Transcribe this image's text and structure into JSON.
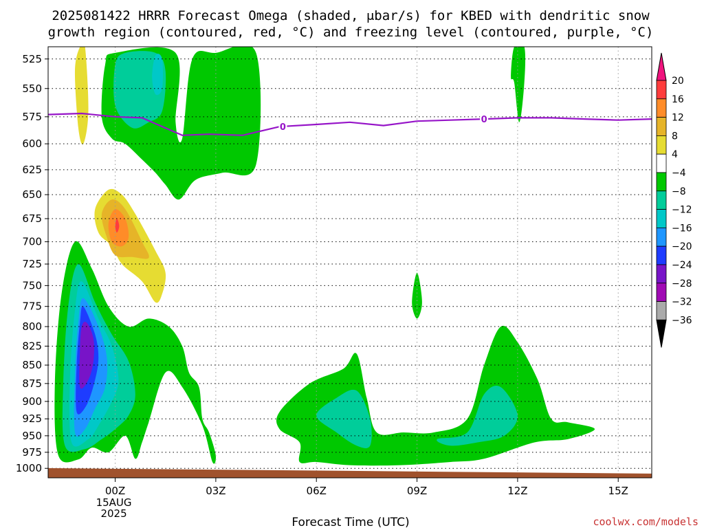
{
  "page": {
    "title_line1": "2025081422 HRRR Forecast Omega (shaded, μbar/s) for KBED with dendritic snow",
    "title_line2": "growth region (contoured, red, °C) and freezing level (contoured, purple, °C)",
    "credit": "coolwx.com/models"
  },
  "chart_data": {
    "type": "heatmap",
    "title": "2025081422 HRRR Forecast Omega (shaded, μbar/s) for KBED with dendritic snow growth region (contoured, red, °C) and freezing level (contoured, purple, °C)",
    "xlabel": "Forecast Time (UTC)",
    "ylabel": "",
    "x_ticks": [
      "00Z",
      "03Z",
      "06Z",
      "09Z",
      "12Z",
      "15Z"
    ],
    "x_tick_hours": [
      2,
      5,
      8,
      11,
      14,
      17
    ],
    "x_date_label": [
      "15AUG",
      "2025"
    ],
    "xlim": [
      0,
      18
    ],
    "y_ticks": [
      525,
      550,
      575,
      600,
      625,
      650,
      675,
      700,
      725,
      750,
      775,
      800,
      825,
      850,
      875,
      900,
      925,
      950,
      975,
      1000
    ],
    "ylim": [
      515,
      1015
    ],
    "ylog": true,
    "y_inverted": true,
    "grid": true,
    "colorbar": {
      "labels": [
        20,
        16,
        12,
        8,
        4,
        -4,
        -8,
        -12,
        -16,
        -20,
        -24,
        -28,
        -32,
        -36
      ],
      "colors": [
        "#f0147e",
        "#ff3c3c",
        "#ff8c28",
        "#e6b428",
        "#e6dc32",
        "#ffffff",
        "#00c800",
        "#00cd9a",
        "#00c8c8",
        "#1e96ff",
        "#1e3cff",
        "#7814c8",
        "#a00ab4",
        "#aaaaaa",
        "#000000"
      ]
    },
    "freezing_level": {
      "label": "0",
      "color": "#9614c8",
      "x": [
        0,
        1,
        2,
        2.8,
        4,
        4.8,
        5.8,
        6.9,
        8,
        9,
        10,
        11,
        12,
        13,
        14,
        15,
        16,
        17,
        18
      ],
      "y": [
        573,
        572,
        575,
        576,
        592,
        591,
        592,
        584,
        582,
        580,
        583,
        579,
        578,
        577,
        576,
        576,
        577,
        578,
        577
      ]
    },
    "omega_regions": [
      {
        "name": "omega-ascent-low-green",
        "value": -8,
        "color": "#00c800",
        "points": [
          [
            0.3,
            979
          ],
          [
            0.2,
            875
          ],
          [
            0.4,
            760
          ],
          [
            0.8,
            700
          ],
          [
            1.3,
            730
          ],
          [
            1.8,
            775
          ],
          [
            2.4,
            800
          ],
          [
            3.0,
            790
          ],
          [
            3.6,
            800
          ],
          [
            4.0,
            825
          ],
          [
            4.2,
            860
          ],
          [
            4.5,
            880
          ],
          [
            4.6,
            925
          ],
          [
            4.8,
            945
          ],
          [
            5.0,
            980
          ],
          [
            4.9,
            990
          ],
          [
            4.6,
            935
          ],
          [
            4.0,
            880
          ],
          [
            3.5,
            860
          ],
          [
            3.0,
            930
          ],
          [
            2.8,
            960
          ],
          [
            2.6,
            985
          ],
          [
            2.3,
            950
          ],
          [
            1.8,
            975
          ],
          [
            1.3,
            968
          ],
          [
            0.9,
            986
          ]
        ]
      },
      {
        "name": "omega-ascent-low-teal",
        "value": -12,
        "color": "#00cd9a",
        "points": [
          [
            0.5,
            965
          ],
          [
            0.45,
            875
          ],
          [
            0.6,
            775
          ],
          [
            0.9,
            725
          ],
          [
            1.4,
            770
          ],
          [
            1.9,
            810
          ],
          [
            2.4,
            845
          ],
          [
            2.6,
            890
          ],
          [
            2.4,
            920
          ],
          [
            2.0,
            940
          ],
          [
            1.6,
            955
          ],
          [
            1.1,
            970
          ]
        ]
      },
      {
        "name": "omega-ascent-low-cyan",
        "value": -16,
        "color": "#00c8c8",
        "points": [
          [
            0.7,
            960
          ],
          [
            0.65,
            870
          ],
          [
            0.8,
            780
          ],
          [
            1.0,
            745
          ],
          [
            1.5,
            790
          ],
          [
            1.9,
            825
          ],
          [
            2.1,
            870
          ],
          [
            1.9,
            900
          ],
          [
            1.5,
            935
          ],
          [
            1.2,
            955
          ]
        ]
      },
      {
        "name": "omega-ascent-low-blue",
        "value": -20,
        "color": "#1e96ff",
        "points": [
          [
            0.8,
            945
          ],
          [
            0.8,
            860
          ],
          [
            0.9,
            795
          ],
          [
            1.05,
            765
          ],
          [
            1.5,
            800
          ],
          [
            1.75,
            840
          ],
          [
            1.7,
            880
          ],
          [
            1.4,
            910
          ],
          [
            1.1,
            940
          ]
        ]
      },
      {
        "name": "omega-ascent-low-dark-blue",
        "value": -24,
        "color": "#1e3cff",
        "points": [
          [
            0.85,
            915
          ],
          [
            0.85,
            850
          ],
          [
            0.95,
            795
          ],
          [
            1.05,
            775
          ],
          [
            1.4,
            810
          ],
          [
            1.5,
            840
          ],
          [
            1.4,
            870
          ],
          [
            1.15,
            905
          ]
        ]
      },
      {
        "name": "omega-ascent-low-purple",
        "value": -28,
        "color": "#7814c8",
        "points": [
          [
            0.95,
            880
          ],
          [
            0.95,
            830
          ],
          [
            1.0,
            800
          ],
          [
            1.15,
            795
          ],
          [
            1.35,
            815
          ],
          [
            1.35,
            845
          ],
          [
            1.2,
            870
          ]
        ]
      },
      {
        "name": "omega-ascent-mid-green",
        "value": -8,
        "color": "#00c800",
        "points": [
          [
            1.6,
            575
          ],
          [
            1.7,
            530
          ],
          [
            2.0,
            520
          ],
          [
            3.8,
            520
          ],
          [
            3.8,
            580
          ],
          [
            4.0,
            595
          ],
          [
            4.3,
            525
          ],
          [
            5.0,
            520
          ],
          [
            6.2,
            520
          ],
          [
            6.2,
            620
          ],
          [
            5.2,
            628
          ],
          [
            4.4,
            635
          ],
          [
            3.9,
            655
          ],
          [
            3.5,
            640
          ],
          [
            3.2,
            628
          ],
          [
            2.8,
            615
          ],
          [
            2.3,
            600
          ],
          [
            1.9,
            595
          ]
        ]
      },
      {
        "name": "omega-ascent-mid-teal",
        "value": -12,
        "color": "#00cd9a",
        "points": [
          [
            2.0,
            565
          ],
          [
            2.0,
            530
          ],
          [
            2.3,
            520
          ],
          [
            3.2,
            520
          ],
          [
            3.5,
            535
          ],
          [
            3.4,
            570
          ],
          [
            3.0,
            580
          ],
          [
            2.5,
            585
          ]
        ]
      },
      {
        "name": "omega-ascent-mid-cyan",
        "value": -16,
        "color": "#00c8c8",
        "points": [
          [
            3.1,
            540
          ],
          [
            3.2,
            522
          ],
          [
            3.4,
            525
          ],
          [
            3.4,
            550
          ],
          [
            3.2,
            555
          ]
        ]
      },
      {
        "name": "omega-ascent-12z-green",
        "value": -8,
        "color": "#00c800",
        "points": [
          [
            13.8,
            540
          ],
          [
            13.9,
            515
          ],
          [
            14.2,
            515
          ],
          [
            14.2,
            545
          ],
          [
            14.05,
            580
          ],
          [
            13.9,
            545
          ]
        ]
      },
      {
        "name": "omega-ascent-09z-green",
        "value": -8,
        "color": "#00c800",
        "points": [
          [
            10.85,
            770
          ],
          [
            11.0,
            735
          ],
          [
            11.15,
            770
          ],
          [
            11.0,
            790
          ]
        ]
      },
      {
        "name": "omega-ascent-06z-green",
        "value": -8,
        "color": "#00c800",
        "points": [
          [
            6.9,
            915
          ],
          [
            7.8,
            875
          ],
          [
            8.8,
            855
          ],
          [
            9.2,
            835
          ],
          [
            9.5,
            895
          ],
          [
            9.8,
            945
          ],
          [
            10.6,
            945
          ],
          [
            11.5,
            945
          ],
          [
            12.5,
            925
          ],
          [
            13.0,
            850
          ],
          [
            13.5,
            800
          ],
          [
            14.0,
            820
          ],
          [
            14.6,
            870
          ],
          [
            15.0,
            925
          ],
          [
            15.5,
            930
          ],
          [
            16.3,
            940
          ],
          [
            15.5,
            955
          ],
          [
            14.5,
            960
          ],
          [
            13.0,
            985
          ],
          [
            12.0,
            990
          ],
          [
            10.5,
            995
          ],
          [
            9.0,
            995
          ],
          [
            8.0,
            990
          ],
          [
            7.5,
            990
          ],
          [
            7.5,
            960
          ],
          [
            6.9,
            940
          ]
        ]
      },
      {
        "name": "omega-ascent-07z-teal",
        "value": -12,
        "color": "#00cd9a",
        "points": [
          [
            8.0,
            920
          ],
          [
            8.6,
            895
          ],
          [
            9.2,
            885
          ],
          [
            9.6,
            925
          ],
          [
            9.6,
            965
          ],
          [
            9.2,
            965
          ],
          [
            8.6,
            945
          ]
        ]
      },
      {
        "name": "omega-ascent-11z-teal",
        "value": -12,
        "color": "#00cd9a",
        "points": [
          [
            11.6,
            955
          ],
          [
            12.5,
            945
          ],
          [
            13.0,
            890
          ],
          [
            13.5,
            880
          ],
          [
            14.0,
            920
          ],
          [
            13.6,
            950
          ],
          [
            12.8,
            960
          ],
          [
            12.0,
            965
          ]
        ]
      },
      {
        "name": "omega-descent-upper-yellow",
        "value": 4,
        "color": "#e6dc32",
        "points": [
          [
            0.8,
            535
          ],
          [
            0.95,
            515
          ],
          [
            1.1,
            515
          ],
          [
            1.2,
            570
          ],
          [
            1.05,
            600
          ],
          [
            0.9,
            585
          ]
        ]
      },
      {
        "name": "omega-descent-yellow",
        "value": 4,
        "color": "#e6dc32",
        "points": [
          [
            1.4,
            665
          ],
          [
            1.8,
            645
          ],
          [
            2.2,
            650
          ],
          [
            2.6,
            670
          ],
          [
            3.2,
            710
          ],
          [
            3.5,
            735
          ],
          [
            3.4,
            760
          ],
          [
            3.2,
            770
          ],
          [
            2.8,
            745
          ],
          [
            2.2,
            725
          ],
          [
            1.9,
            705
          ],
          [
            1.5,
            690
          ]
        ]
      },
      {
        "name": "omega-descent-gold",
        "value": 8,
        "color": "#e6b428",
        "points": [
          [
            1.6,
            670
          ],
          [
            1.9,
            655
          ],
          [
            2.3,
            665
          ],
          [
            2.8,
            700
          ],
          [
            3.0,
            718
          ],
          [
            2.5,
            717
          ],
          [
            2.0,
            715
          ],
          [
            1.75,
            695
          ]
        ]
      },
      {
        "name": "omega-descent-orange",
        "value": 12,
        "color": "#ff8c28",
        "points": [
          [
            1.8,
            680
          ],
          [
            2.0,
            665
          ],
          [
            2.3,
            675
          ],
          [
            2.4,
            695
          ],
          [
            2.2,
            705
          ],
          [
            1.9,
            700
          ]
        ]
      },
      {
        "name": "omega-descent-red",
        "value": 16,
        "color": "#ff3c3c",
        "points": [
          [
            2.0,
            683
          ],
          [
            2.05,
            675
          ],
          [
            2.12,
            683
          ],
          [
            2.05,
            690
          ]
        ]
      }
    ],
    "surface": {
      "color": "#a0522d",
      "pressure": [
        1004,
        1012
      ]
    }
  }
}
